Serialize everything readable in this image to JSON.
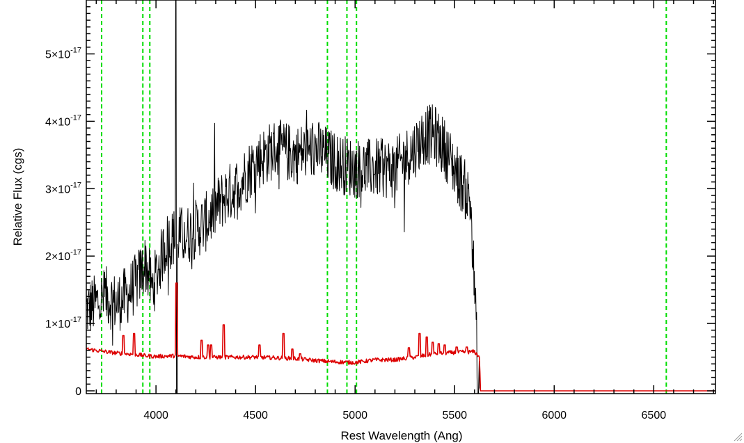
{
  "chart_data": {
    "type": "line",
    "title": "",
    "xlabel": "Rest Wavelength (Ang)",
    "ylabel": "Relative Flux (cgs)",
    "xlim": [
      3650,
      6810
    ],
    "ylim": [
      0,
      5.8e-17
    ],
    "grid": false,
    "x_ticks": [
      {
        "value": 4000,
        "label": "4000"
      },
      {
        "value": 4500,
        "label": "4500"
      },
      {
        "value": 5000,
        "label": "5000"
      },
      {
        "value": 5500,
        "label": "5500"
      },
      {
        "value": 6000,
        "label": "6000"
      },
      {
        "value": 6500,
        "label": "6500"
      }
    ],
    "y_ticks": [
      {
        "value": 0,
        "mantissa": "0",
        "exponent": ""
      },
      {
        "value": 1e-17,
        "mantissa": "1×10",
        "exponent": "-17"
      },
      {
        "value": 2e-17,
        "mantissa": "2×10",
        "exponent": "-17"
      },
      {
        "value": 3e-17,
        "mantissa": "3×10",
        "exponent": "-17"
      },
      {
        "value": 4e-17,
        "mantissa": "4×10",
        "exponent": "-17"
      },
      {
        "value": 5e-17,
        "mantissa": "5×10",
        "exponent": "-17"
      }
    ],
    "vlines": {
      "color": "#00dd00",
      "style": "dashed",
      "x": [
        3727,
        3934,
        3969,
        4861,
        4959,
        5007,
        6563
      ]
    },
    "series": [
      {
        "color": "#000000",
        "style": "noisy",
        "x": [
          3650,
          3700,
          3750,
          3800,
          3850,
          3900,
          3950,
          3980,
          4050,
          4100,
          4150,
          4200,
          4250,
          4300,
          4350,
          4400,
          4450,
          4500,
          4600,
          4700,
          4800,
          4900,
          5000,
          5100,
          5200,
          5300,
          5350,
          5400,
          5450,
          5500,
          5550,
          5580,
          5600,
          5610,
          5620,
          5630
        ],
        "y": [
          1.2e-17,
          1.3e-17,
          1.4e-17,
          1.3e-17,
          1.4e-17,
          1.6e-17,
          1.9e-17,
          1.5e-17,
          2.2e-17,
          2.3e-17,
          2.3e-17,
          2.4e-17,
          2.5e-17,
          2.7e-17,
          2.9e-17,
          3e-17,
          3.2e-17,
          3.4e-17,
          3.6e-17,
          3.5e-17,
          3.6e-17,
          3.4e-17,
          3.3e-17,
          3.3e-17,
          3.3e-17,
          3.6e-17,
          3.8e-17,
          3.8e-17,
          3.6e-17,
          3.3e-17,
          3e-17,
          2.8e-17,
          1.5e-17,
          8e-18,
          1e-18,
          0
        ],
        "spikes": [
          {
            "x": 4100,
            "y": 5.8e-17
          },
          {
            "x": 4105,
            "y": -1e-18
          },
          {
            "x": 5617,
            "y": -1e-18
          }
        ],
        "noise_amplitude": 4.5e-18
      },
      {
        "color": "#dd0000",
        "style": "model",
        "x": [
          3650,
          3700,
          3800,
          3900,
          3950,
          4000,
          4100,
          4200,
          4300,
          4400,
          4500,
          4600,
          4700,
          4800,
          4900,
          5000,
          5100,
          5200,
          5300,
          5400,
          5500,
          5600,
          5625,
          5630,
          6810
        ],
        "y": [
          6.2e-18,
          6e-18,
          5.6e-18,
          5.4e-18,
          5.2e-18,
          5.1e-18,
          5.2e-18,
          5e-18,
          5e-18,
          5e-18,
          5e-18,
          4.9e-18,
          4.8e-18,
          4.5e-18,
          4.3e-18,
          4.2e-18,
          4.6e-18,
          4.6e-18,
          5e-18,
          5.5e-18,
          5.7e-18,
          5.8e-18,
          5e-18,
          0,
          0
        ],
        "spikes": [
          {
            "x": 3835,
            "y": 8.2e-18
          },
          {
            "x": 3889,
            "y": 8.5e-18
          },
          {
            "x": 4102,
            "y": 1.6e-17
          },
          {
            "x": 4230,
            "y": 7.5e-18
          },
          {
            "x": 4262,
            "y": 6.8e-18
          },
          {
            "x": 4278,
            "y": 6.8e-18
          },
          {
            "x": 4340,
            "y": 9.8e-18
          },
          {
            "x": 4520,
            "y": 6.8e-18
          },
          {
            "x": 4640,
            "y": 8.5e-18
          },
          {
            "x": 4685,
            "y": 6.2e-18
          },
          {
            "x": 4725,
            "y": 5.5e-18
          },
          {
            "x": 5270,
            "y": 6.4e-18
          },
          {
            "x": 5325,
            "y": 8.5e-18
          },
          {
            "x": 5360,
            "y": 8e-18
          },
          {
            "x": 5390,
            "y": 7.2e-18
          },
          {
            "x": 5420,
            "y": 7e-18
          },
          {
            "x": 5450,
            "y": 6.8e-18
          },
          {
            "x": 5510,
            "y": 6.5e-18
          },
          {
            "x": 5560,
            "y": 6.5e-18
          }
        ],
        "noise_amplitude": 3e-19
      }
    ]
  }
}
